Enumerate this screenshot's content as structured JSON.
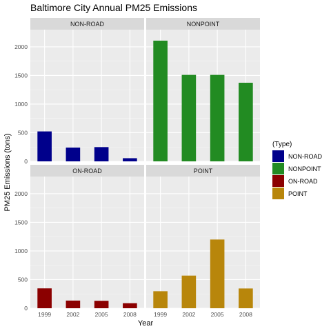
{
  "chart_data": {
    "type": "bar",
    "title": "Baltimore City Annual PM25 Emissions",
    "xlabel": "Year",
    "ylabel": "PM25 Emissions (tons)",
    "categories": [
      "1999",
      "2002",
      "2005",
      "2008"
    ],
    "ylim": [
      0,
      2300
    ],
    "yticks": [
      0,
      500,
      1000,
      1500,
      2000
    ],
    "facet_layout": "2x2",
    "grid": true,
    "legend_position": "right",
    "legend_title": "(Type)",
    "series": [
      {
        "name": "NON-ROAD",
        "color": "#00008B",
        "values": [
          523,
          241,
          249,
          55
        ]
      },
      {
        "name": "NONPOINT",
        "color": "#228B22",
        "values": [
          2108,
          1510,
          1510,
          1373
        ]
      },
      {
        "name": "ON-ROAD",
        "color": "#8B0000",
        "values": [
          347,
          134,
          130,
          88
        ]
      },
      {
        "name": "POINT",
        "color": "#B8860B",
        "values": [
          297,
          570,
          1200,
          345
        ]
      }
    ]
  }
}
